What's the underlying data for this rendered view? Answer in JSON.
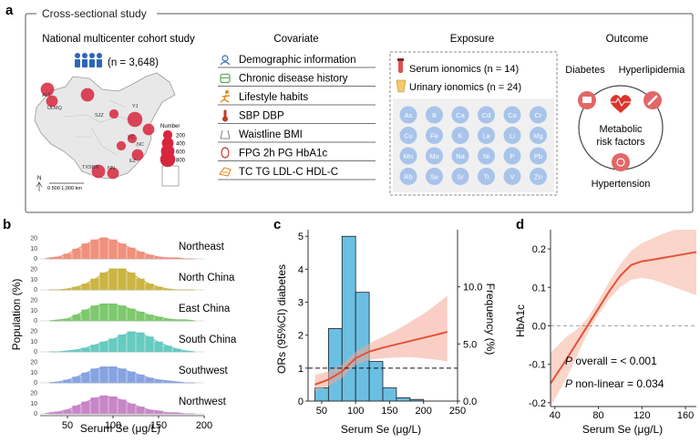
{
  "panel_a": {
    "letter": "a",
    "frame_title": "Cross-sectional study",
    "cohort": {
      "title": "National multicenter cohort study",
      "n_label": "(n = 3,648)",
      "map_legend_title": "Number",
      "map_legend_values": [
        "200",
        "400",
        "600",
        "800"
      ],
      "scale_label": "0   500  1,000 km",
      "north_label": "N",
      "city_labels": [
        "ALT",
        "ULMQ",
        "SJZ",
        "YJ",
        "YC",
        "NC",
        "EZ",
        "TXSBN",
        "NN"
      ],
      "site_counts": [
        600,
        400,
        600,
        200,
        800,
        400,
        200,
        200,
        400,
        600,
        400
      ]
    },
    "covariate": {
      "title": "Covariate",
      "items": [
        {
          "icon": "person-icon",
          "label": "Demographic information"
        },
        {
          "icon": "medicine-icon",
          "label": "Chronic disease history"
        },
        {
          "icon": "running-person-icon",
          "label": "Lifestyle habits"
        },
        {
          "icon": "thermometer-icon",
          "label": "SBP  DBP"
        },
        {
          "icon": "waist-icon",
          "label": "Waistline  BMI"
        },
        {
          "icon": "drop-icon",
          "label": "FPG  2h PG  HbA1c"
        },
        {
          "icon": "hand-icon",
          "label": "TC  TG  LDL-C  HDL-C"
        }
      ]
    },
    "exposure": {
      "title": "Exposure",
      "items": [
        {
          "icon": "blood-tube-icon",
          "label": "Serum ionomics (n = 14)"
        },
        {
          "icon": "urine-cup-icon",
          "label": "Urinary ionomics (n = 24)"
        }
      ],
      "elements": [
        "As",
        "B",
        "Ca",
        "Cd",
        "Co",
        "Cr",
        "Cu",
        "Fe",
        "K",
        "La",
        "Li",
        "Mg",
        "Mn",
        "Mo",
        "Na",
        "Ni",
        "P",
        "Pb",
        "Rb",
        "Se",
        "Sr",
        "Ti",
        "V",
        "Zn"
      ]
    },
    "outcome": {
      "title": "Outcome",
      "diabetes": "Diabetes",
      "hyperlipidemia": "Hyperlipidemia",
      "center_line1": "Metabolic",
      "center_line2": "risk factors",
      "hypertension": "Hypertension"
    }
  },
  "panel_b": {
    "letter": "b",
    "ylabel": "Population (%)",
    "xlabel": "Serum Se (μg/L)",
    "x_ticks": [
      "50",
      "100",
      "150",
      "200"
    ],
    "y_ticks": [
      "0",
      "10",
      "20"
    ]
  },
  "panel_c": {
    "letter": "c",
    "ylabel_left": "ORs (95%CI) diabetes",
    "ylabel_right": "Frequency (%)",
    "xlabel": "Serum Se (μg/L)",
    "x_ticks": [
      "50",
      "100",
      "150",
      "200",
      "250"
    ],
    "y_ticks_left": [
      "0",
      "1",
      "2",
      "3",
      "4",
      "5"
    ],
    "y_ticks_right": [
      "0.0",
      "5.0",
      "10.0"
    ]
  },
  "panel_d": {
    "letter": "d",
    "ylabel": "HbA1c",
    "xlabel": "Serum Se (μg/L)",
    "x_ticks": [
      "40",
      "80",
      "120",
      "160"
    ],
    "y_ticks": [
      "0.2",
      "0.1",
      "0.0",
      "-0.1",
      "-0.2"
    ],
    "p_overall_label": "P",
    "p_overall_text": " overall = < 0.001",
    "p_nonlinear_label": "P",
    "p_nonlinear_text": " non-linear = 0.034"
  },
  "chart_data": [
    {
      "type": "area",
      "panel": "b",
      "x_range": [
        20,
        200
      ],
      "x": [
        30,
        40,
        50,
        60,
        70,
        80,
        90,
        100,
        110,
        120,
        130,
        140,
        150,
        160,
        170,
        180,
        190
      ],
      "y_range": [
        0,
        25
      ],
      "series": [
        {
          "name": "Northeast",
          "color": "#ef8a76",
          "values": [
            1,
            2,
            5,
            10,
            15,
            19,
            21,
            19,
            15,
            11,
            7,
            4,
            2,
            1,
            1,
            0,
            0
          ]
        },
        {
          "name": "North China",
          "color": "#c9b037",
          "values": [
            0,
            0,
            1,
            3,
            6,
            11,
            17,
            21,
            21,
            17,
            11,
            6,
            3,
            1,
            0,
            0,
            0
          ]
        },
        {
          "name": "East China",
          "color": "#76c564",
          "values": [
            0,
            1,
            2,
            6,
            11,
            15,
            17,
            17,
            15,
            12,
            9,
            6,
            4,
            2,
            1,
            1,
            0
          ]
        },
        {
          "name": "South China",
          "color": "#5cc8bd",
          "values": [
            0,
            0,
            1,
            2,
            4,
            7,
            10,
            13,
            17,
            20,
            19,
            15,
            10,
            6,
            3,
            1,
            0
          ]
        },
        {
          "name": "Southwest",
          "color": "#7f9de0",
          "values": [
            0,
            1,
            3,
            6,
            10,
            14,
            16,
            16,
            14,
            11,
            8,
            5,
            3,
            2,
            1,
            0,
            0
          ]
        },
        {
          "name": "Northwest",
          "color": "#c57dc4",
          "values": [
            1,
            2,
            4,
            8,
            12,
            16,
            18,
            17,
            14,
            10,
            7,
            4,
            3,
            1,
            1,
            0,
            0
          ]
        }
      ]
    },
    {
      "type": "bar",
      "panel": "c",
      "x_range": [
        30,
        250
      ],
      "bar_edges": [
        40,
        60,
        80,
        100,
        120,
        140,
        160,
        180,
        200,
        220
      ],
      "values": [
        0.4,
        2.2,
        5.0,
        3.3,
        1.2,
        0.4,
        0.1,
        0.05,
        0
      ],
      "ylim_left": [
        0,
        5.2
      ],
      "ylim_right": [
        0,
        15
      ],
      "reference_line_y": 1,
      "or_curve": {
        "x": [
          40,
          60,
          80,
          100,
          120,
          140,
          160,
          180,
          200,
          220,
          235
        ],
        "or": [
          0.5,
          0.65,
          0.9,
          1.3,
          1.5,
          1.62,
          1.72,
          1.82,
          1.92,
          2.02,
          2.1
        ],
        "lower": [
          0.3,
          0.45,
          0.7,
          1.1,
          1.25,
          1.3,
          1.32,
          1.33,
          1.3,
          1.25,
          1.2
        ],
        "upper": [
          0.8,
          0.9,
          1.1,
          1.5,
          1.75,
          1.95,
          2.15,
          2.4,
          2.65,
          2.95,
          3.2
        ]
      }
    },
    {
      "type": "line",
      "panel": "d",
      "x_range": [
        36,
        170
      ],
      "ylim": [
        -0.21,
        0.25
      ],
      "x": [
        36,
        50,
        60,
        70,
        80,
        90,
        100,
        110,
        120,
        130,
        140,
        150,
        160,
        170
      ],
      "y": [
        -0.15,
        -0.09,
        -0.045,
        0.0,
        0.045,
        0.09,
        0.13,
        0.158,
        0.168,
        0.172,
        0.177,
        0.182,
        0.187,
        0.192
      ],
      "lower": [
        -0.22,
        -0.14,
        -0.08,
        -0.02,
        0.03,
        0.07,
        0.1,
        0.12,
        0.125,
        0.12,
        0.11,
        0.1,
        0.09,
        0.08
      ],
      "upper": [
        -0.07,
        -0.03,
        -0.01,
        0.02,
        0.065,
        0.115,
        0.16,
        0.195,
        0.215,
        0.228,
        0.24,
        0.25,
        0.26,
        0.27
      ]
    }
  ]
}
